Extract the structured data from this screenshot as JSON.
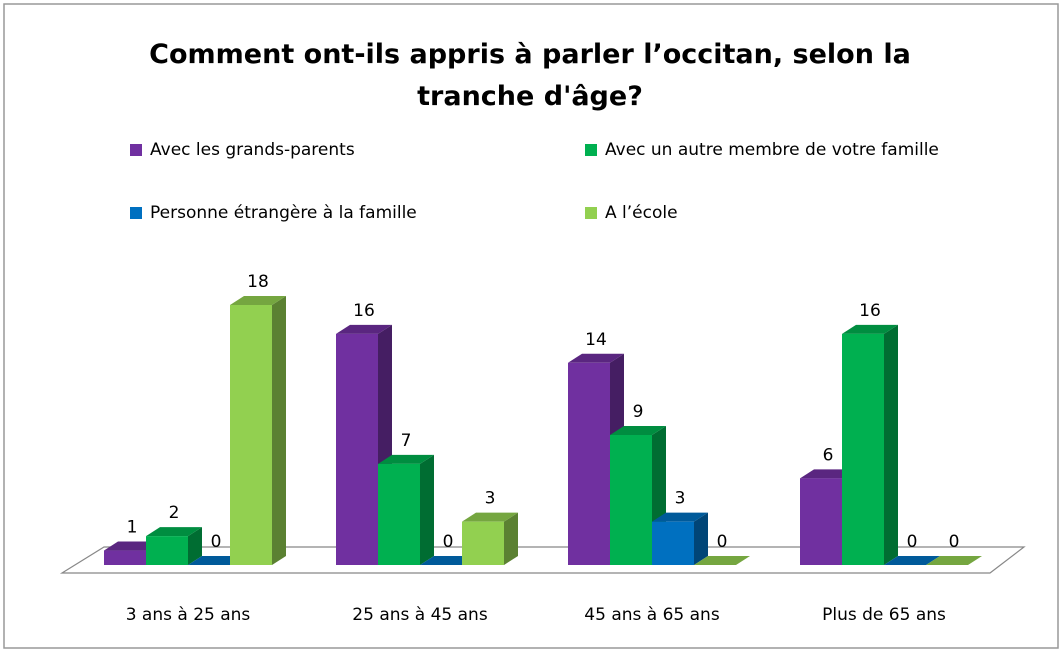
{
  "chart_data": {
    "type": "bar3d",
    "title": "Comment ont-ils appris à parler l’occitan, selon la tranche d'âge?",
    "categories": [
      "3 ans à 25 ans",
      "25 ans à 45 ans",
      "45 ans à 65 ans",
      "Plus de 65 ans"
    ],
    "series": [
      {
        "name": "Avec les grands-parents",
        "color": "#7030a0",
        "values": [
          1,
          16,
          14,
          6
        ]
      },
      {
        "name": "Avec un autre membre de votre famille",
        "color": "#00b050",
        "values": [
          2,
          7,
          9,
          16
        ]
      },
      {
        "name": "Personne étrangère à la famille",
        "color": "#0070c0",
        "values": [
          0,
          0,
          3,
          0
        ]
      },
      {
        "name": "A l’école",
        "color": "#92d050",
        "values": [
          18,
          3,
          0,
          0
        ]
      }
    ],
    "legend": "top",
    "data_labels": true
  }
}
